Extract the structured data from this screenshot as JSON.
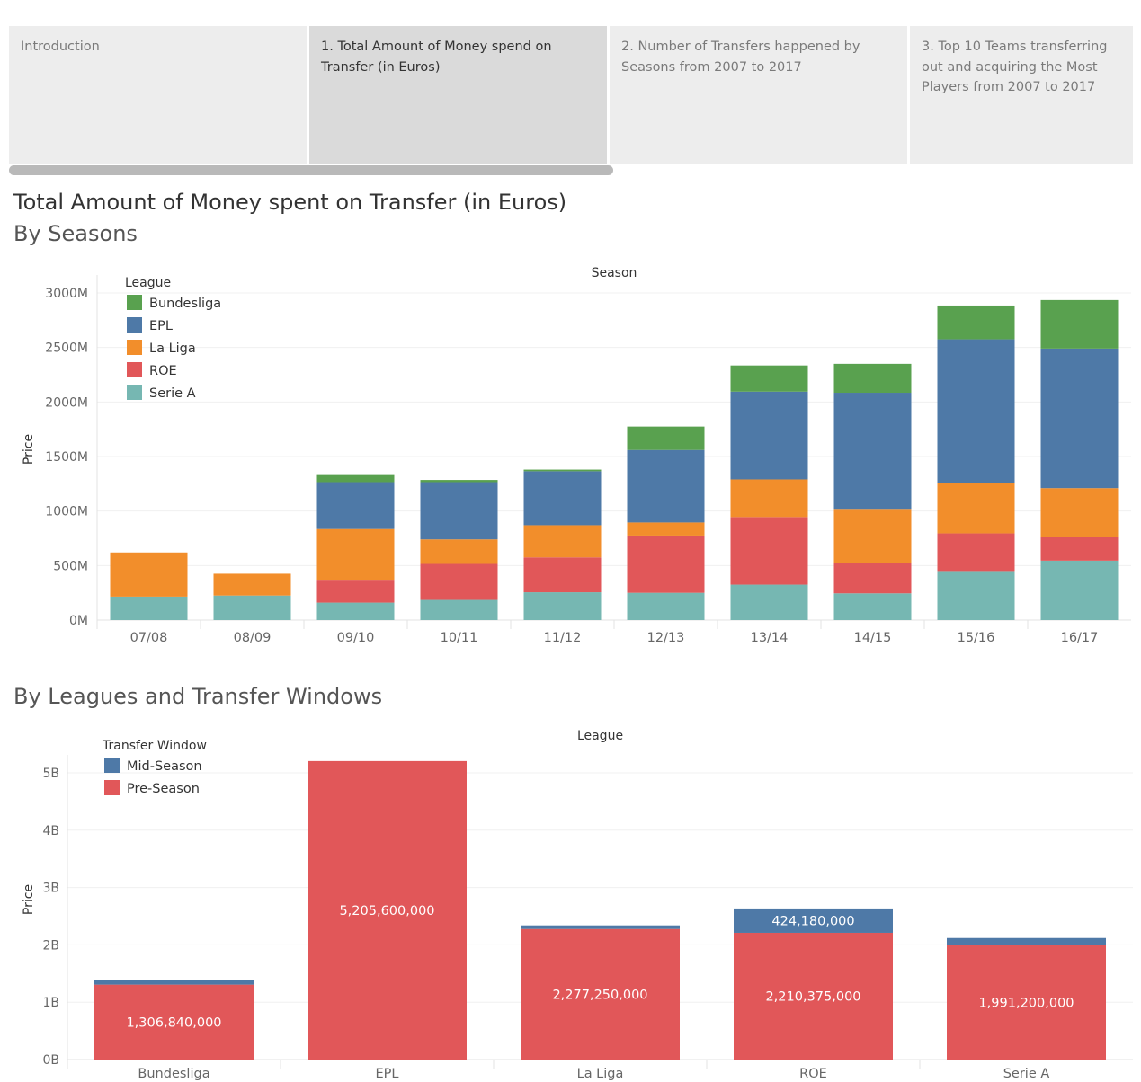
{
  "tabs": [
    {
      "label": "Introduction",
      "active": false
    },
    {
      "label": "1. Total Amount of Money spend on Transfer (in Euros)",
      "active": true
    },
    {
      "label": "2. Number of Transfers happened by Seasons from 2007 to 2017",
      "active": false
    },
    {
      "label": "3. Top 10 Teams transferring out and acquiring the Most Players from 2007 to 2017",
      "active": false
    }
  ],
  "page": {
    "title": "Total Amount of Money spent on Transfer (in Euros)",
    "subtitle1": "By Seasons",
    "subtitle2": "By Leagues and Transfer Windows"
  },
  "chart_data": [
    {
      "type": "bar",
      "stacked": true,
      "title": "Season",
      "xlabel": "",
      "ylabel": "Price",
      "legend_title": "League",
      "legend_position": "top-left",
      "categories": [
        "07/08",
        "08/09",
        "09/10",
        "10/11",
        "11/12",
        "12/13",
        "13/14",
        "14/15",
        "15/16",
        "16/17"
      ],
      "ylim": [
        0,
        3000
      ],
      "yticks": [
        0,
        500,
        1000,
        1500,
        2000,
        2500,
        3000
      ],
      "ytick_labels": [
        "0M",
        "500M",
        "1000M",
        "1500M",
        "2000M",
        "2500M",
        "3000M"
      ],
      "series": [
        {
          "name": "Serie A",
          "color": "#76b7b2",
          "values": [
            215,
            225,
            160,
            185,
            255,
            250,
            325,
            245,
            450,
            545
          ]
        },
        {
          "name": "ROE",
          "color": "#e15759",
          "values": [
            0,
            0,
            210,
            330,
            320,
            525,
            620,
            275,
            345,
            215
          ]
        },
        {
          "name": "La Liga",
          "color": "#f28e2b",
          "values": [
            405,
            200,
            465,
            225,
            295,
            120,
            345,
            500,
            465,
            450
          ]
        },
        {
          "name": "EPL",
          "color": "#4e79a7",
          "values": [
            0,
            0,
            430,
            525,
            495,
            665,
            805,
            1065,
            1315,
            1280
          ]
        },
        {
          "name": "Bundesliga",
          "color": "#59a14f",
          "values": [
            0,
            0,
            65,
            20,
            15,
            215,
            240,
            265,
            310,
            445
          ]
        }
      ],
      "legend_order": [
        "Bundesliga",
        "EPL",
        "La Liga",
        "ROE",
        "Serie A"
      ],
      "grid": true
    },
    {
      "type": "bar",
      "stacked": true,
      "title": "League",
      "xlabel": "",
      "ylabel": "Price",
      "legend_title": "Transfer Window",
      "legend_position": "top-left",
      "categories": [
        "Bundesliga",
        "EPL",
        "La Liga",
        "ROE",
        "Serie A"
      ],
      "ylim": [
        0,
        5000000000
      ],
      "yticks": [
        0,
        1000000000,
        2000000000,
        3000000000,
        4000000000,
        5000000000
      ],
      "ytick_labels": [
        "0B",
        "1B",
        "2B",
        "3B",
        "4B",
        "5B"
      ],
      "series": [
        {
          "name": "Pre-Season",
          "color": "#e15759",
          "values": [
            1306840000,
            5205600000,
            2277250000,
            2210375000,
            1991200000
          ],
          "labels": [
            "1,306,840,000",
            "5,205,600,000",
            "2,277,250,000",
            "2,210,375,000",
            "1,991,200,000"
          ]
        },
        {
          "name": "Mid-Season",
          "color": "#4e79a7",
          "values": [
            73160000,
            0,
            62750000,
            424180000,
            128800000
          ],
          "labels": [
            "",
            "",
            "",
            "424,180,000",
            ""
          ]
        }
      ],
      "legend_order": [
        "Mid-Season",
        "Pre-Season"
      ],
      "grid": true
    }
  ]
}
